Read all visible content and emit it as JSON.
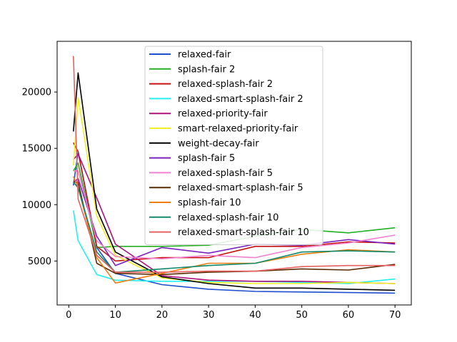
{
  "chart_data": {
    "type": "line",
    "title": "",
    "xlabel": "",
    "ylabel": "",
    "xlim": [
      -2.5,
      73.5
    ],
    "ylim": [
      1100,
      24500
    ],
    "xticks": [
      0,
      10,
      20,
      30,
      40,
      50,
      60,
      70
    ],
    "yticks": [
      5000,
      10000,
      15000,
      20000
    ],
    "ytick_labels": [
      "5000",
      "10000",
      "15000",
      "20000"
    ],
    "xtick_labels": [
      "0",
      "10",
      "20",
      "30",
      "40",
      "50",
      "60",
      "70"
    ],
    "grid": false,
    "legend_placement": "upper center",
    "x": [
      1,
      2,
      6,
      10,
      20,
      30,
      40,
      50,
      60,
      70
    ],
    "series": [
      {
        "name": "relaxed-fair",
        "color": "#1f4fd0",
        "values": [
          11700,
          14700,
          6200,
          3900,
          2900,
          2500,
          2300,
          2250,
          2200,
          2150
        ]
      },
      {
        "name": "splash-fair 2",
        "color": "#22b022",
        "values": [
          13000,
          13700,
          6200,
          6300,
          6300,
          6400,
          7200,
          7800,
          7500,
          7950
        ]
      },
      {
        "name": "relaxed-splash-fair 2",
        "color": "#c81010",
        "values": [
          15500,
          14700,
          6300,
          5000,
          5300,
          5300,
          6300,
          6300,
          6700,
          6600
        ]
      },
      {
        "name": "relaxed-smart-splash-fair 2",
        "color": "#22f0f0",
        "values": [
          9500,
          6800,
          3800,
          3300,
          3200,
          3200,
          3200,
          3100,
          3000,
          3400
        ]
      },
      {
        "name": "relaxed-priority-fair",
        "color": "#b0107a",
        "values": [
          14000,
          14500,
          10600,
          6500,
          3700,
          3300,
          3200,
          3200,
          3100,
          3000
        ]
      },
      {
        "name": "smart-relaxed-priority-fair",
        "color": "#f0f020",
        "values": [
          13500,
          19500,
          9000,
          5500,
          3500,
          3100,
          3000,
          3000,
          3100,
          3000
        ]
      },
      {
        "name": "weight-decay-fair",
        "color": "#000000",
        "values": [
          16500,
          21700,
          9600,
          5800,
          3600,
          3000,
          2600,
          2600,
          2500,
          2400
        ]
      },
      {
        "name": "splash-fair 5",
        "color": "#7a22c0",
        "values": [
          12000,
          12300,
          7200,
          4600,
          6200,
          5700,
          6500,
          6400,
          6900,
          6500
        ]
      },
      {
        "name": "relaxed-splash-fair 5",
        "color": "#f080d0",
        "values": [
          13000,
          13000,
          6800,
          5400,
          5200,
          5500,
          5300,
          6200,
          6600,
          7300
        ]
      },
      {
        "name": "relaxed-smart-splash-fair 5",
        "color": "#5a2a00",
        "values": [
          12000,
          12000,
          4800,
          3900,
          3800,
          4000,
          4100,
          4300,
          4200,
          4700
        ]
      },
      {
        "name": "splash-fair 10",
        "color": "#f07d10",
        "values": [
          12500,
          11500,
          5300,
          3050,
          3900,
          4800,
          4800,
          5600,
          6000,
          5800
        ]
      },
      {
        "name": "relaxed-splash-fair 10",
        "color": "#108a6a",
        "values": [
          12000,
          11500,
          5800,
          4000,
          4300,
          4600,
          4800,
          5800,
          5900,
          5800
        ]
      },
      {
        "name": "relaxed-smart-splash-fair 10",
        "color": "#e86060",
        "values": [
          23200,
          10500,
          5500,
          4000,
          4000,
          4100,
          4100,
          4500,
          4600,
          4600
        ]
      }
    ]
  }
}
